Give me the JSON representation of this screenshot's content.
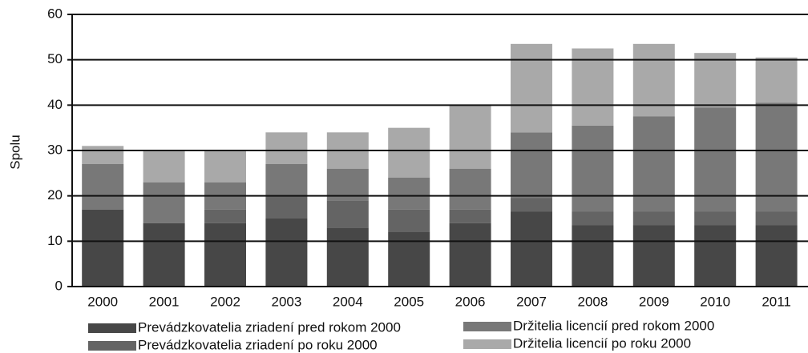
{
  "chart_data": {
    "type": "stacked_bar",
    "y_label": "Spolu",
    "categories": [
      "2000",
      "2001",
      "2002",
      "2003",
      "2004",
      "2005",
      "2006",
      "2007",
      "2008",
      "2009",
      "2010",
      "2011"
    ],
    "series": [
      {
        "name": "Prevádzkovatelia zriadení pred rokom 2000",
        "color": "#474747",
        "values": [
          17,
          14,
          14,
          15,
          13,
          12,
          14,
          16.5,
          13.5,
          13.5,
          13.5,
          13.5
        ]
      },
      {
        "name": "Prevádzkovatelia zriadení po roku 2000",
        "color": "#646464",
        "values": [
          0,
          0,
          3,
          5,
          6,
          5,
          3,
          3,
          3,
          3,
          3,
          3
        ]
      },
      {
        "name": "Držitelia licencií pred rokom 2000",
        "color": "#787878",
        "values": [
          10,
          9,
          6,
          7,
          7,
          7,
          9,
          14.5,
          19,
          21,
          23,
          24
        ]
      },
      {
        "name": "Držitelia licencií po roku 2000",
        "color": "#a9a9a9",
        "values": [
          4,
          7,
          7,
          7,
          8,
          11,
          14,
          19.5,
          17,
          16,
          12,
          10
        ]
      }
    ],
    "ylim": [
      0,
      60
    ],
    "yticks": [
      0,
      10,
      20,
      30,
      40,
      50,
      60
    ],
    "grid": true
  }
}
